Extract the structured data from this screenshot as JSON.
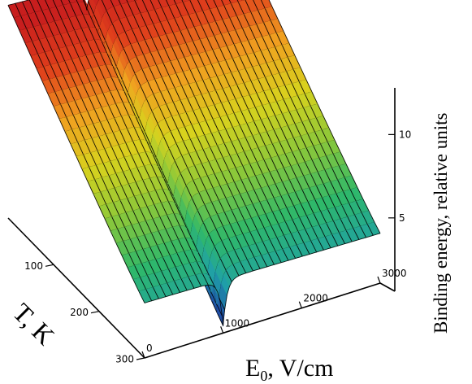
{
  "chart_data": {
    "type": "surface3d",
    "x_axis": {
      "label_main": "E",
      "label_sub": "0",
      "label_rest": ", V/cm",
      "ticks": [
        0,
        1000,
        2000,
        3000
      ],
      "range": [
        0,
        3000
      ]
    },
    "y_axis": {
      "label": "T, K",
      "ticks": [
        100,
        200,
        300
      ]
    },
    "z_axis": {
      "label": "Binding energy, relative units",
      "ticks": [
        5,
        10
      ]
    },
    "colormap": [
      "#1f4fa8",
      "#1fa0a8",
      "#2fb86a",
      "#8cc83a",
      "#d8d21e",
      "#f0a020",
      "#e0401c",
      "#c81e1e"
    ],
    "features": {
      "dip_at_E0": 1000
    }
  }
}
